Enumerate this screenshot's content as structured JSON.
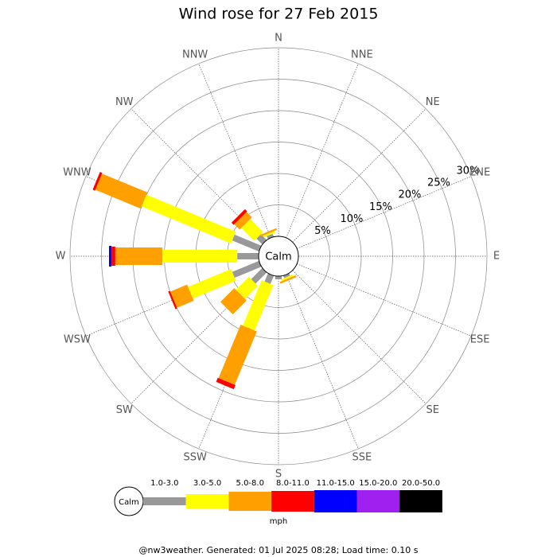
{
  "chart_data": {
    "type": "windrose",
    "title": "Wind rose for 27 Feb 2015",
    "calm_label": "Calm",
    "unit": "mph",
    "footer": "@nw3weather. Generated: 01 Jul 2025 08:28; Load time: 0.10 s",
    "directions": [
      "N",
      "NNE",
      "NE",
      "ENE",
      "E",
      "ESE",
      "SE",
      "SSE",
      "S",
      "SSW",
      "SW",
      "WSW",
      "W",
      "WNW",
      "NW",
      "NNW"
    ],
    "rlim": [
      0,
      30
    ],
    "rticks": [
      {
        "value": 5,
        "label": "5%"
      },
      {
        "value": 10,
        "label": "10%"
      },
      {
        "value": 15,
        "label": "15%"
      },
      {
        "value": 20,
        "label": "20%"
      },
      {
        "value": 25,
        "label": "25%"
      },
      {
        "value": 30,
        "label": "30%"
      }
    ],
    "series": [
      {
        "name": "1.0-3.0",
        "color": "#999999",
        "values": [
          0,
          0,
          0,
          0,
          0,
          0,
          0,
          0.4,
          0.5,
          1.4,
          2.5,
          4.6,
          3.4,
          4.6,
          1.3,
          0.5
        ]
      },
      {
        "name": "3.0-5.0",
        "color": "#ffff00",
        "values": [
          0,
          0,
          0,
          0,
          0,
          0,
          0,
          0.3,
          0,
          7.8,
          2.9,
          7.4,
          11.9,
          15.4,
          2.9,
          0.3
        ]
      },
      {
        "name": "5.0-8.0",
        "color": "#ffa000",
        "values": [
          0,
          0,
          0,
          0,
          0,
          0,
          0,
          0.3,
          0,
          9.2,
          3.1,
          2.9,
          7.5,
          7.8,
          1.2,
          0.3
        ]
      },
      {
        "name": "8.0-11.0",
        "color": "#ff0000",
        "values": [
          0,
          0,
          0,
          0,
          0,
          0,
          0,
          0,
          0,
          0.7,
          0,
          0.3,
          0.6,
          0.4,
          0.5,
          0
        ]
      },
      {
        "name": "11.0-15.0",
        "color": "#0000ff",
        "values": [
          0,
          0,
          0,
          0,
          0,
          0,
          0,
          0,
          0,
          0,
          0,
          0,
          0.4,
          0,
          0,
          0
        ]
      },
      {
        "name": "15.0-20.0",
        "color": "#a020f0",
        "values": [
          0,
          0,
          0,
          0,
          0,
          0,
          0,
          0,
          0,
          0,
          0,
          0,
          0,
          0,
          0,
          0
        ]
      },
      {
        "name": "20.0-50.0",
        "color": "#000000",
        "values": [
          0,
          0,
          0,
          0,
          0,
          0,
          0,
          0,
          0,
          0,
          0,
          0,
          0,
          0,
          0,
          0
        ]
      }
    ]
  }
}
